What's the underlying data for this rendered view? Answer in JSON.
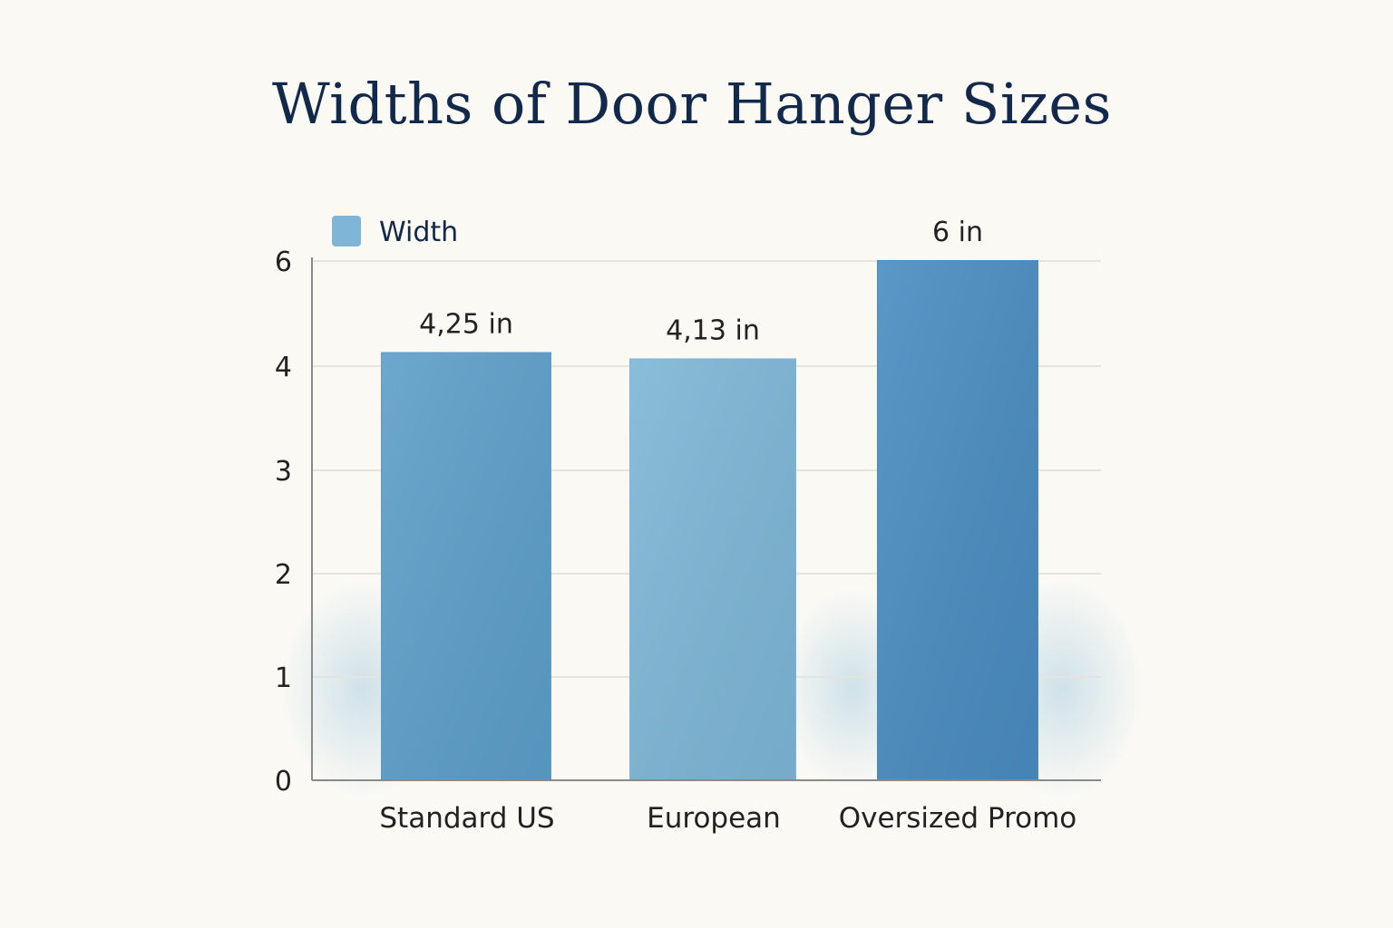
{
  "colors": {
    "background": "#faf9f4",
    "title": "#13294b",
    "legend_swatch": "#7fb6d6",
    "grid": "#e4e4e0",
    "axis": "#8a8a8a",
    "bars": [
      "#5d9ec9",
      "#7db6d6",
      "#4a8cc0"
    ]
  },
  "chart_data": {
    "type": "bar",
    "title": "Widths of Door Hanger Sizes",
    "xlabel": "",
    "ylabel": "",
    "categories": [
      "Standard US",
      "European",
      "Oversized Promo"
    ],
    "series": [
      {
        "name": "Width",
        "values": [
          4.25,
          4.13,
          6
        ],
        "data_labels": [
          "4,25 in",
          "4,13 in",
          "6 in"
        ]
      }
    ],
    "yticks": [
      0,
      1,
      2,
      3,
      4,
      6
    ],
    "ylim": [
      0,
      6
    ],
    "grid": true,
    "legend_position": "top-left"
  }
}
